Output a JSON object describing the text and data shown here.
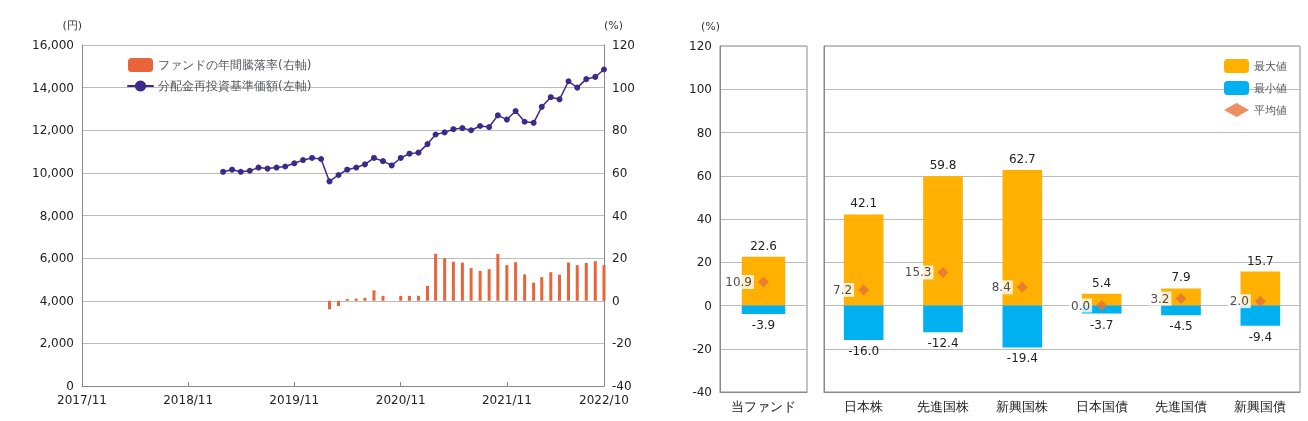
{
  "chart_data": [
    {
      "type": "line",
      "ylabel": "(円)",
      "y2label": "(%)",
      "legend": "top left",
      "grid": "y",
      "xlim": [
        "2017-11",
        "2022-10"
      ],
      "xticks": [
        {
          "value": "2017-11",
          "label": "2017/11"
        },
        {
          "value": "2018-11",
          "label": "2018/11"
        },
        {
          "value": "2019-11",
          "label": "2019/11"
        },
        {
          "value": "2020-11",
          "label": "2020/11"
        },
        {
          "value": "2021-11",
          "label": "2021/11"
        },
        {
          "value": "2022-10",
          "label": "2022/10"
        }
      ],
      "ylim": [
        0,
        16000
      ],
      "yticks": [
        0,
        {
          "value": 2000,
          "label": "2,000"
        },
        {
          "value": 4000,
          "label": "4,000"
        },
        {
          "value": 6000,
          "label": "6,000"
        },
        {
          "value": 8000,
          "label": "8,000"
        },
        {
          "value": 10000,
          "label": "10,000"
        },
        {
          "value": 12000,
          "label": "12,000"
        },
        {
          "value": 14000,
          "label": "14,000"
        },
        {
          "value": 16000,
          "label": "16,000"
        }
      ],
      "y2lim": [
        -40,
        120
      ],
      "y2ticks": [
        -40,
        -20,
        0,
        20,
        40,
        60,
        80,
        100,
        120
      ],
      "series": [
        {
          "name": "ファンドの年間騰落率(右軸)",
          "type": "bar",
          "axis": "y2",
          "color": "#e8643a",
          "x": [
            "2020-03",
            "2020-04",
            "2020-05",
            "2020-06",
            "2020-07",
            "2020-08",
            "2020-09",
            "2020-10",
            "2020-11",
            "2020-12",
            "2021-01",
            "2021-02",
            "2021-03",
            "2021-04",
            "2021-05",
            "2021-06",
            "2021-07",
            "2021-08",
            "2021-09",
            "2021-10",
            "2021-11",
            "2021-12",
            "2022-01",
            "2022-02",
            "2022-03",
            "2022-04",
            "2022-05",
            "2022-06",
            "2022-07",
            "2022-08",
            "2022-09",
            "2022-10"
          ],
          "values": [
            -4,
            -2.5,
            0.8,
            1,
            1.4,
            4.9,
            2.3,
            null,
            2.3,
            2.3,
            2.3,
            7,
            22,
            20,
            18.3,
            17.9,
            15.3,
            14,
            14.8,
            22,
            16.7,
            18.1,
            12.4,
            8.5,
            11.1,
            13.4,
            12.2,
            17.9,
            16.7,
            17.7,
            18.6,
            16.7
          ]
        },
        {
          "name": "分配金再投資基準価額(左軸)",
          "type": "line",
          "marker": "circle",
          "color": "#3b2a8a",
          "x": [
            "2019-03",
            "2019-04",
            "2019-05",
            "2019-06",
            "2019-07",
            "2019-08",
            "2019-09",
            "2019-10",
            "2019-11",
            "2019-12",
            "2020-01",
            "2020-02",
            "2020-03",
            "2020-04",
            "2020-05",
            "2020-06",
            "2020-07",
            "2020-08",
            "2020-09",
            "2020-10",
            "2020-11",
            "2020-12",
            "2021-01",
            "2021-02",
            "2021-03",
            "2021-04",
            "2021-05",
            "2021-06",
            "2021-07",
            "2021-08",
            "2021-09",
            "2021-10",
            "2021-11",
            "2021-12",
            "2022-01",
            "2022-02",
            "2022-03",
            "2022-04",
            "2022-05",
            "2022-06",
            "2022-07",
            "2022-08",
            "2022-09",
            "2022-10"
          ],
          "values": [
            10050,
            10150,
            10050,
            10100,
            10250,
            10200,
            10250,
            10300,
            10450,
            10600,
            10700,
            10650,
            9600,
            9900,
            10150,
            10250,
            10400,
            10700,
            10550,
            10350,
            10700,
            10900,
            10950,
            11350,
            11800,
            11900,
            12050,
            12100,
            12000,
            12200,
            12150,
            12700,
            12500,
            12900,
            12400,
            12350,
            13100,
            13550,
            13450,
            14300,
            14000,
            14400,
            14500,
            14850
          ]
        }
      ]
    },
    {
      "type": "bar",
      "ylabel": "(%)",
      "stacked": true,
      "grid": "y",
      "categories": [
        "当ファンド"
      ],
      "ylim": [
        -40,
        120
      ],
      "yticks": [
        -40,
        -20,
        0,
        20,
        40,
        60,
        80,
        100,
        120
      ],
      "series": [
        {
          "color": "#ffb000",
          "values": [
            22.6
          ],
          "value_labels": [
            "22.6"
          ]
        },
        {
          "color": "#00b0f0",
          "values": [
            -3.9
          ],
          "value_labels": [
            "-3.9"
          ]
        },
        {
          "type": "scatter",
          "marker": "diamond",
          "color": "#e8703a",
          "x": [
            "当ファンド"
          ],
          "values": [
            10.9
          ],
          "value_labels": [
            "10.9"
          ]
        }
      ]
    },
    {
      "type": "bar",
      "stacked": true,
      "grid": "y",
      "tick_labels": "x",
      "legend": "top right",
      "categories": [
        "日本株",
        "先進国株",
        "新興国株",
        "日本国債",
        "先進国債",
        "新興国債"
      ],
      "ylim": [
        -40,
        120
      ],
      "yticks": [
        -40,
        -20,
        0,
        20,
        40,
        60,
        80,
        100,
        120
      ],
      "series": [
        {
          "name": "最大値",
          "color": "#ffb000",
          "values": [
            42.1,
            59.8,
            62.7,
            5.4,
            7.9,
            15.7
          ],
          "value_labels": [
            "42.1",
            "59.8",
            "62.7",
            "5.4",
            "7.9",
            "15.7"
          ]
        },
        {
          "name": "最小値",
          "color": "#00b0f0",
          "values": [
            -16.0,
            -12.4,
            -19.4,
            -3.7,
            -4.5,
            -9.4
          ],
          "value_labels": [
            "-16.0",
            "-12.4",
            "-19.4",
            "-3.7",
            "-4.5",
            "-9.4"
          ]
        },
        {
          "name": "平均値",
          "type": "scatter",
          "marker": "diamond",
          "color": "#e8703a",
          "x": [
            "日本株",
            "先進国株",
            "新興国株",
            "日本国債",
            "先進国債",
            "新興国債"
          ],
          "values": [
            7.2,
            15.3,
            8.4,
            0.0,
            3.2,
            2.0
          ],
          "value_labels": [
            "7.2",
            "15.3",
            "8.4",
            "0.0",
            "3.2",
            "2.0"
          ]
        }
      ]
    }
  ]
}
